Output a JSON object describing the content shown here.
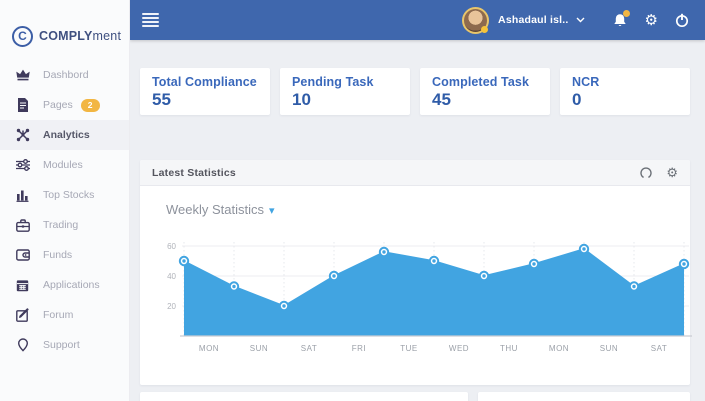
{
  "theme": {
    "topbar_bg": "#3f67ad",
    "accent_blue": "#3a68bb",
    "chart_blue": "#41a4e1",
    "badge_amber": "#f2b643"
  },
  "logo": {
    "bold": "COMPLY",
    "light": "ment",
    "initial": "C"
  },
  "sidebar": {
    "items": [
      {
        "label": "Dashbord",
        "icon": "crown-icon",
        "active": false
      },
      {
        "label": "Pages",
        "icon": "file-icon",
        "active": false,
        "badge": "2"
      },
      {
        "label": "Analytics",
        "icon": "network-icon",
        "active": true
      },
      {
        "label": "Modules",
        "icon": "sliders-icon",
        "active": false
      },
      {
        "label": "Top Stocks",
        "icon": "bar-chart-icon",
        "active": false
      },
      {
        "label": "Trading",
        "icon": "briefcase-icon",
        "active": false
      },
      {
        "label": "Funds",
        "icon": "wallet-icon",
        "active": false
      },
      {
        "label": "Applications",
        "icon": "calendar-icon",
        "active": false
      },
      {
        "label": "Forum",
        "icon": "edit-icon",
        "active": false
      },
      {
        "label": "Support",
        "icon": "pin-icon",
        "active": false
      }
    ]
  },
  "topbar": {
    "user_name": "Ashadaul isl..",
    "icons": [
      "bell-icon",
      "gear-icon",
      "power-icon"
    ]
  },
  "stats": [
    {
      "label": "Total Compliance",
      "value": "55"
    },
    {
      "label": "Pending Task",
      "value": "10"
    },
    {
      "label": "Completed Task",
      "value": "45"
    },
    {
      "label": "NCR",
      "value": "0"
    }
  ],
  "statistics_card": {
    "title": "Latest Statistics",
    "subtitle": "Weekly Statistics",
    "header_icons": [
      "refresh-icon",
      "gear-icon"
    ]
  },
  "chart_data": {
    "type": "area",
    "title": "Weekly Statistics",
    "x_labels": [
      "MON",
      "SUN",
      "SAT",
      "FRI",
      "TUE",
      "WED",
      "THU",
      "MON",
      "SUN",
      "SAT"
    ],
    "values": [
      50,
      33,
      20,
      40,
      56,
      50,
      40,
      48,
      58,
      33,
      48
    ],
    "labels_between_points": true,
    "ylim": [
      0,
      65
    ],
    "yticks": [
      20,
      40,
      60
    ],
    "grid": true,
    "legend": "none",
    "line_color": "#41a4e1",
    "fill_color": "#41a4e1",
    "marker": "donut-circle"
  }
}
